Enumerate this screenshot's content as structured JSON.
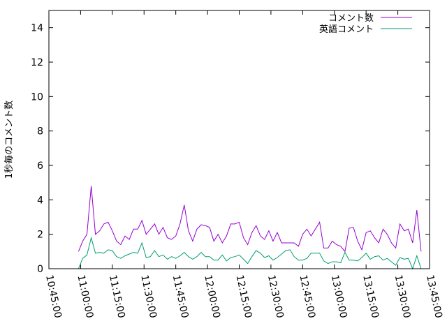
{
  "chart_data": {
    "type": "line",
    "title": "",
    "xlabel": "",
    "ylabel": "1秒毎のコメント数",
    "ylim": [
      0,
      15
    ],
    "yticks": [
      "0",
      "2",
      "4",
      "6",
      "8",
      "10",
      "12",
      "14"
    ],
    "xlim": [
      "10:45:00",
      "13:45:00"
    ],
    "xticks": [
      "10:45:00",
      "11:00:00",
      "11:15:00",
      "11:30:00",
      "11:45:00",
      "12:00:00",
      "12:15:00",
      "12:30:00",
      "12:45:00",
      "13:00:00",
      "13:15:00",
      "13:30:00",
      "13:45:00"
    ],
    "legend_position": "top-right",
    "grid": false,
    "x": [
      "10:59:00",
      "11:01:00",
      "11:03:00",
      "11:05:00",
      "11:07:00",
      "11:09:00",
      "11:11:00",
      "11:13:00",
      "11:15:00",
      "11:17:00",
      "11:19:00",
      "11:21:00",
      "11:23:00",
      "11:25:00",
      "11:27:00",
      "11:29:00",
      "11:31:00",
      "11:33:00",
      "11:35:00",
      "11:37:00",
      "11:39:00",
      "11:41:00",
      "11:43:00",
      "11:45:00",
      "11:47:00",
      "11:49:00",
      "11:51:00",
      "11:53:00",
      "11:55:00",
      "11:57:00",
      "11:59:00",
      "12:01:00",
      "12:03:00",
      "12:05:00",
      "12:07:00",
      "12:09:00",
      "12:11:00",
      "12:13:00",
      "12:15:00",
      "12:17:00",
      "12:19:00",
      "12:21:00",
      "12:23:00",
      "12:25:00",
      "12:27:00",
      "12:29:00",
      "12:31:00",
      "12:33:00",
      "12:35:00",
      "12:37:00",
      "12:39:00",
      "12:41:00",
      "12:43:00",
      "12:45:00",
      "12:47:00",
      "12:49:00",
      "12:51:00",
      "12:53:00",
      "12:55:00",
      "12:57:00",
      "12:59:00",
      "13:01:00",
      "13:03:00",
      "13:05:00",
      "13:07:00",
      "13:09:00",
      "13:11:00",
      "13:13:00",
      "13:15:00",
      "13:17:00",
      "13:19:00",
      "13:21:00",
      "13:23:00",
      "13:25:00",
      "13:27:00",
      "13:29:00",
      "13:31:00",
      "13:33:00",
      "13:35:00",
      "13:37:00",
      "13:39:00",
      "13:41:00"
    ],
    "series": [
      {
        "name": "コメント数",
        "color": "#9400d3",
        "values": [
          1.0,
          1.6,
          2.0,
          4.8,
          2.0,
          2.2,
          2.6,
          2.7,
          2.2,
          1.6,
          1.4,
          1.9,
          1.7,
          2.3,
          2.3,
          2.8,
          2.0,
          2.3,
          2.6,
          2.0,
          2.4,
          1.8,
          1.7,
          1.9,
          2.6,
          3.7,
          2.2,
          1.6,
          2.3,
          2.55,
          2.5,
          2.4,
          1.6,
          2.0,
          1.5,
          1.9,
          2.6,
          2.6,
          2.7,
          1.8,
          1.4,
          2.1,
          2.5,
          1.9,
          1.7,
          2.2,
          1.6,
          2.1,
          1.5,
          1.5,
          1.5,
          1.5,
          1.3,
          2.0,
          2.3,
          1.9,
          2.3,
          2.7,
          1.2,
          1.2,
          1.6,
          1.4,
          1.3,
          1.0,
          2.35,
          2.4,
          1.6,
          1.1,
          2.1,
          2.2,
          1.8,
          1.5,
          2.3,
          2.0,
          1.5,
          1.2,
          2.6,
          2.2,
          2.3,
          1.5,
          3.4,
          1.0
        ]
      },
      {
        "name": "英語コメント",
        "color": "#009e73",
        "values": [
          0.0,
          0.6,
          0.8,
          1.8,
          0.9,
          0.95,
          0.9,
          1.1,
          1.05,
          0.7,
          0.6,
          0.75,
          0.85,
          0.95,
          0.9,
          1.5,
          0.65,
          0.7,
          1.05,
          0.7,
          0.8,
          0.55,
          0.7,
          0.6,
          0.75,
          0.95,
          0.7,
          0.55,
          0.7,
          0.95,
          0.7,
          0.7,
          0.5,
          0.5,
          0.8,
          0.45,
          0.65,
          0.7,
          0.8,
          0.55,
          0.3,
          0.7,
          1.05,
          0.9,
          0.65,
          0.75,
          0.5,
          0.65,
          0.85,
          1.05,
          1.1,
          0.7,
          0.5,
          0.5,
          0.6,
          0.9,
          0.9,
          0.9,
          0.45,
          0.3,
          0.4,
          0.4,
          0.35,
          0.95,
          0.5,
          0.5,
          0.45,
          0.65,
          0.9,
          0.55,
          0.7,
          0.75,
          0.5,
          0.6,
          0.4,
          0.2,
          0.65,
          0.55,
          0.6,
          0.0,
          0.75,
          0.0
        ]
      }
    ]
  }
}
